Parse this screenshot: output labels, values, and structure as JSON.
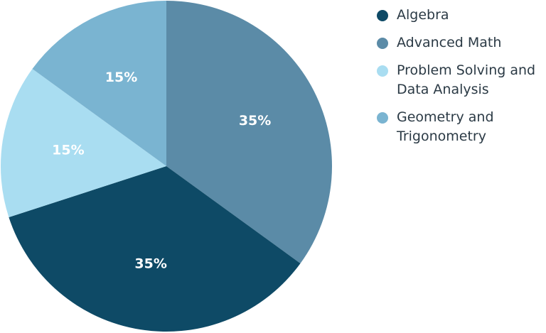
{
  "chart_data": {
    "type": "pie",
    "categories": [
      "Algebra",
      "Advanced Math",
      "Problem Solving and Data Analysis",
      "Geometry and Trigonometry"
    ],
    "values": [
      35,
      35,
      15,
      15
    ],
    "value_labels": [
      "35%",
      "35%",
      "15%",
      "15%"
    ],
    "colors": [
      "#0e4a66",
      "#5b8ba7",
      "#a9ddf1",
      "#7ab4d1"
    ]
  }
}
